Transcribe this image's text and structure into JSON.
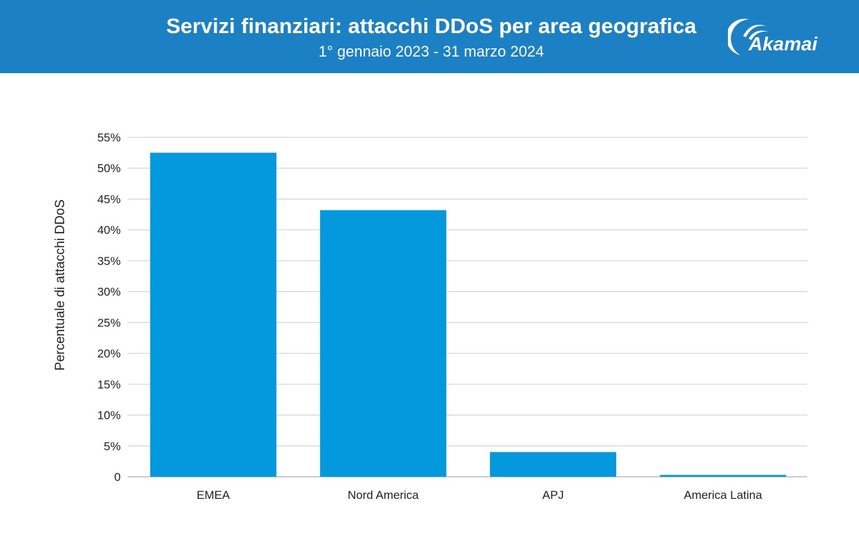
{
  "header": {
    "title": "Servizi finanziari: attacchi DDoS per area geografica",
    "subtitle": "1° gennaio 2023 - 31 marzo 2024",
    "logo_text": "Akamai",
    "background_color": "#1b80c4"
  },
  "chart_data": {
    "type": "bar",
    "title": "Servizi finanziari: attacchi DDoS per area geografica",
    "subtitle": "1° gennaio 2023 - 31 marzo 2024",
    "categories": [
      "EMEA",
      "Nord America",
      "APJ",
      "America Latina"
    ],
    "values": [
      52.5,
      43.2,
      4.0,
      0.3
    ],
    "xlabel": "",
    "ylabel": "Percentuale di attacchi DDoS",
    "ylim": [
      0,
      55
    ],
    "yticks": [
      0,
      5,
      10,
      15,
      20,
      25,
      30,
      35,
      40,
      45,
      50,
      55
    ],
    "ytick_labels": [
      "0",
      "5%",
      "10%",
      "15%",
      "20%",
      "25%",
      "30%",
      "35%",
      "40%",
      "45%",
      "50%",
      "55%"
    ],
    "grid": true,
    "bar_color": "#0399dc"
  }
}
